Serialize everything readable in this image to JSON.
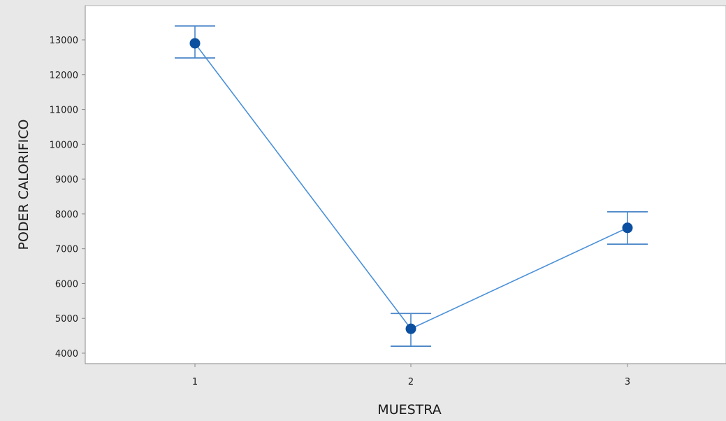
{
  "chart_data": {
    "type": "line",
    "title": "",
    "xlabel": "MUESTRA",
    "ylabel": "PODER CALORIFICO",
    "categories": [
      "1",
      "2",
      "3"
    ],
    "series": [
      {
        "values": [
          12900,
          4700,
          7600
        ],
        "error_low": [
          12480,
          4200,
          7130
        ],
        "error_high": [
          13400,
          5140,
          8060
        ]
      }
    ],
    "y_ticks": [
      4000,
      5000,
      6000,
      7000,
      8000,
      9000,
      10000,
      11000,
      12000,
      13000
    ],
    "ylim": [
      3750,
      14000
    ],
    "grid": false,
    "colors": {
      "background": "#e8e8e8",
      "plot_background": "#ffffff",
      "line": "#4a90d9",
      "marker": "#0b4fa0",
      "error_bar": "#4a86c8"
    }
  }
}
